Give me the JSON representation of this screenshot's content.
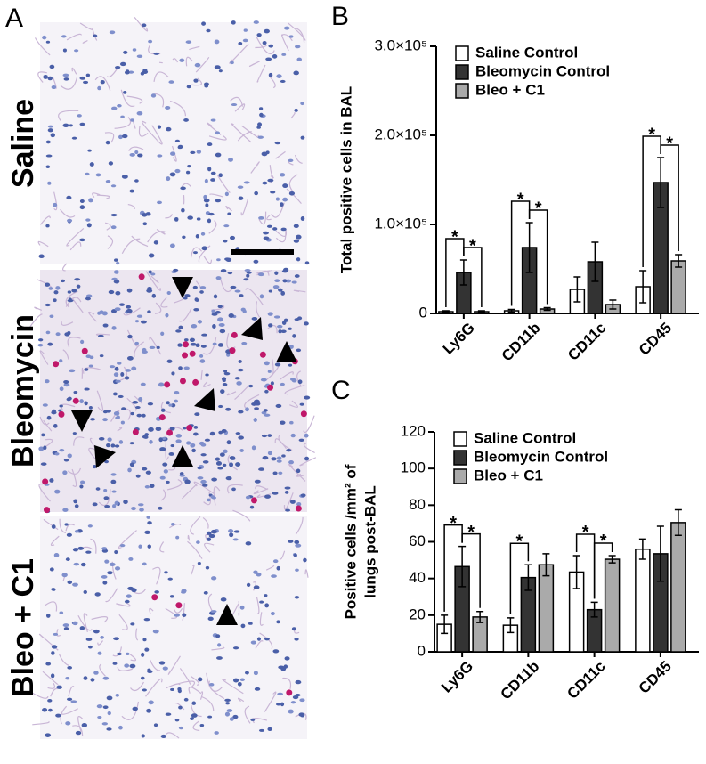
{
  "figure": {
    "panel_labels": [
      "A",
      "B",
      "C"
    ],
    "images": [
      "Saline",
      "Bleomycin",
      "Bleo + C1"
    ]
  },
  "chart_data": [
    {
      "type": "bar",
      "ylabel": [
        "Total positive cells in BAL"
      ],
      "categories": [
        "Ly6G",
        "CD11b",
        "CD11c",
        "CD45"
      ],
      "series": [
        {
          "name": "Saline Control",
          "color": "#ffffff",
          "values": [
            2000,
            3000,
            27000,
            30000
          ],
          "errors": [
            1000,
            1500,
            14000,
            18000
          ]
        },
        {
          "name": "Bleomycin Control",
          "color": "#333333",
          "values": [
            46000,
            74000,
            58000,
            147000
          ],
          "errors": [
            14000,
            28000,
            22000,
            28000
          ]
        },
        {
          "name": "Bleo + C1",
          "color": "#aaaaaa",
          "values": [
            2000,
            5000,
            10000,
            59000
          ],
          "errors": [
            1000,
            1500,
            5000,
            7000
          ]
        }
      ],
      "ylim": [
        0,
        300000
      ],
      "yticks": [
        0,
        {
          "value": 100000,
          "label": "1.0×10⁵"
        },
        {
          "value": 200000,
          "label": "2.0×10⁵"
        },
        {
          "value": 300000,
          "label": "3.0×10⁵"
        }
      ],
      "annotations": [
        {
          "category": 0,
          "from": 0,
          "to": 1,
          "label": "*"
        },
        {
          "category": 0,
          "from": 1,
          "to": 2,
          "label": "*"
        },
        {
          "category": 1,
          "from": 0,
          "to": 1,
          "label": "*"
        },
        {
          "category": 1,
          "from": 1,
          "to": 2,
          "label": "*"
        },
        {
          "category": 3,
          "from": 0,
          "to": 1,
          "label": "*"
        },
        {
          "category": 3,
          "from": 1,
          "to": 2,
          "label": "*"
        }
      ]
    },
    {
      "type": "bar",
      "ylabel": [
        "Positive cells /mm² of",
        "lungs post-BAL"
      ],
      "categories": [
        "Ly6G",
        "CD11b",
        "CD11c",
        "CD45"
      ],
      "series": [
        {
          "name": "Saline Control",
          "color": "#ffffff",
          "values": [
            15,
            14.5,
            43.5,
            56
          ],
          "errors": [
            5,
            4,
            9,
            5.5
          ]
        },
        {
          "name": "Bleomycin Control",
          "color": "#333333",
          "values": [
            46.5,
            40.5,
            23,
            53.5
          ],
          "errors": [
            11,
            7,
            4,
            15
          ]
        },
        {
          "name": "Bleo + C1",
          "color": "#aaaaaa",
          "values": [
            19,
            47.5,
            50.5,
            70.5
          ],
          "errors": [
            3,
            6,
            2,
            7
          ]
        }
      ],
      "ylim": [
        0,
        120
      ],
      "yticks": [
        0,
        20,
        40,
        60,
        80,
        100,
        120
      ],
      "annotations": [
        {
          "category": 0,
          "from": 0,
          "to": 1,
          "label": "*"
        },
        {
          "category": 0,
          "from": 1,
          "to": 2,
          "label": "*"
        },
        {
          "category": 1,
          "from": 0,
          "to": 1,
          "label": "*"
        },
        {
          "category": 2,
          "from": 0,
          "to": 1,
          "label": "*"
        },
        {
          "category": 2,
          "from": 1,
          "to": 2,
          "label": "*"
        }
      ]
    }
  ]
}
